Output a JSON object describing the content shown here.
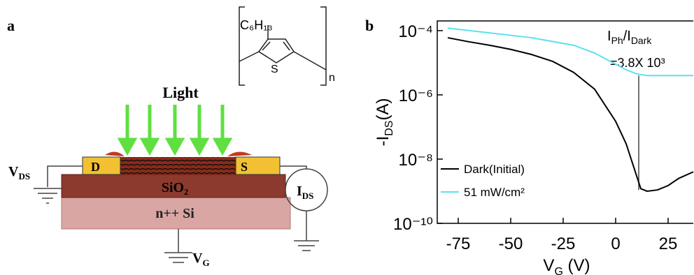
{
  "panel_a": {
    "label": "a",
    "light": "Light",
    "drain": "D",
    "source": "S",
    "oxide": "SiO₂",
    "substrate": "n++ Si",
    "vds": [
      "V",
      "DS"
    ],
    "ids": [
      "I",
      "DS"
    ],
    "vg": [
      "V",
      "G"
    ],
    "polymer": {
      "side_chain": "C₆H₁₃",
      "sulfur": "S",
      "repeat": "n"
    }
  },
  "chart_data": {
    "type": "line",
    "panel_label": "b",
    "x_label": [
      "V",
      "G",
      " (V)"
    ],
    "y_label": [
      "-I",
      "DS",
      "(A)"
    ],
    "xlim": [
      -85,
      37
    ],
    "xticks": [
      -75,
      -50,
      -25,
      0,
      25
    ],
    "ylim": [
      1e-10,
      0.0002
    ],
    "log_y": true,
    "yticks": [
      {
        "value": 0.0001,
        "label": "10⁻⁴"
      },
      {
        "value": 1e-06,
        "label": "10⁻⁶"
      },
      {
        "value": 1e-08,
        "label": "10⁻⁸"
      },
      {
        "value": 1e-10,
        "label": "10⁻¹⁰"
      }
    ],
    "legend": "lower left",
    "series": [
      {
        "name": "Dark(Initial)",
        "color": "#000000",
        "x": [
          -80,
          -70,
          -60,
          -50,
          -40,
          -30,
          -20,
          -10,
          0,
          5,
          10,
          12,
          15,
          20,
          25,
          30,
          37
        ],
        "values": [
          6e-05,
          4.5e-05,
          3.5e-05,
          2.6e-05,
          1.8e-05,
          1.1e-05,
          5e-06,
          1.5e-06,
          1.5e-07,
          3e-08,
          3e-09,
          1.2e-09,
          1e-09,
          1.1e-09,
          1.5e-09,
          2.5e-09,
          4e-09
        ]
      },
      {
        "name": "51 mW/cm²",
        "color": "#5ce1f0",
        "x": [
          -80,
          -60,
          -40,
          -20,
          -10,
          0,
          5,
          10,
          15,
          20,
          37
        ],
        "values": [
          0.00012,
          8.5e-05,
          6e-05,
          3.5e-05,
          2e-05,
          9e-06,
          6e-06,
          4.5e-06,
          4e-06,
          4e-06,
          4e-06
        ]
      }
    ],
    "annotation": {
      "ratio_label": [
        "I",
        "Ph",
        "/I",
        "Dark"
      ],
      "ratio_value": "=3.8X 10³",
      "x": 11,
      "y_from": 4e-06,
      "y_to": 1.1e-09
    }
  }
}
